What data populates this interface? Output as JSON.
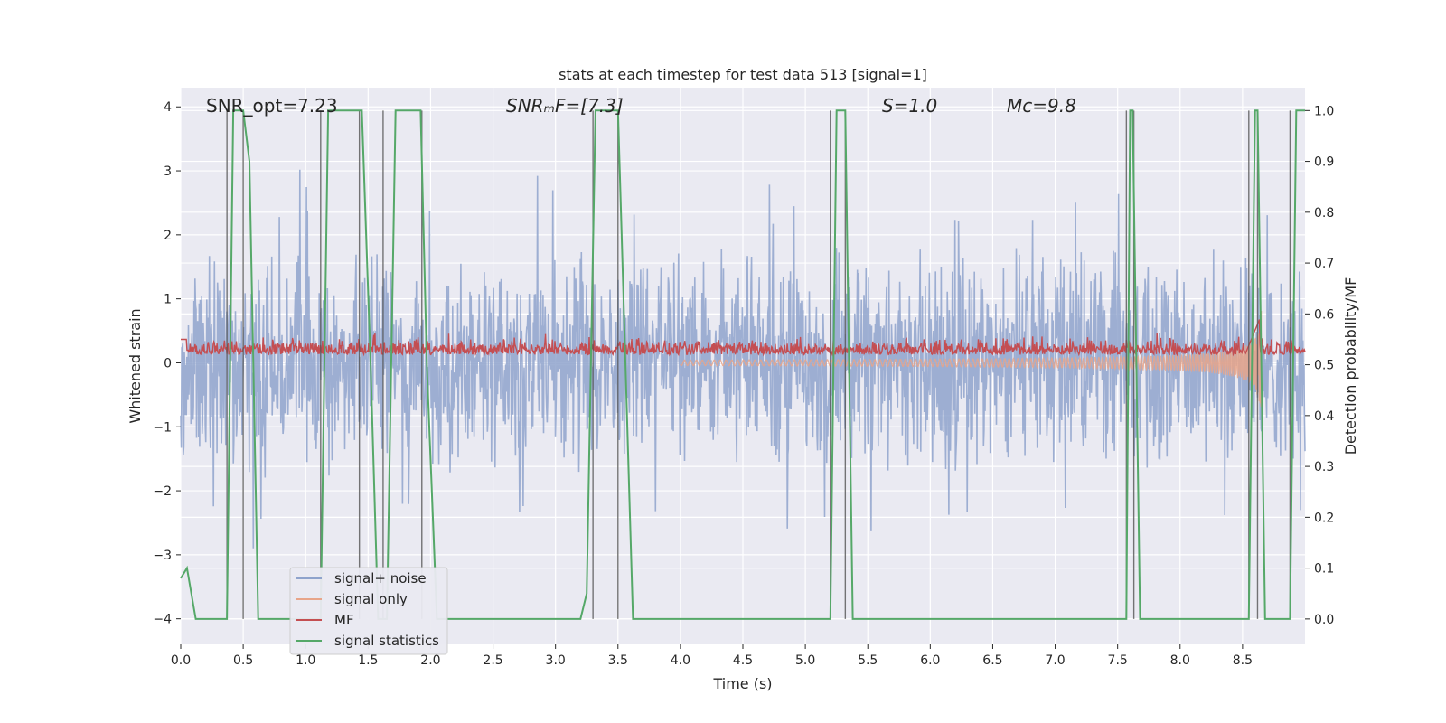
{
  "chart_data": {
    "type": "line",
    "title": "stats at each timestep for test data 513 [signal=1]",
    "xlabel": "Time (s)",
    "ylabel": "Whitened strain",
    "y2label": "Detection probability/MF",
    "xlim": [
      0.0,
      9.0
    ],
    "ylim": [
      -4.4,
      4.3
    ],
    "y2lim": [
      -0.05,
      1.045
    ],
    "grid": true,
    "legend_position": "bottom-left",
    "x_ticks": [
      0.0,
      0.5,
      1.0,
      1.5,
      2.0,
      2.5,
      3.0,
      3.5,
      4.0,
      4.5,
      5.0,
      5.5,
      6.0,
      6.5,
      7.0,
      7.5,
      8.0,
      8.5
    ],
    "x_tick_labels": [
      "0.0",
      "0.5",
      "1.0",
      "1.5",
      "2.0",
      "2.5",
      "3.0",
      "3.5",
      "4.0",
      "4.5",
      "5.0",
      "5.5",
      "6.0",
      "6.5",
      "7.0",
      "7.5",
      "8.0",
      "8.5"
    ],
    "y_ticks": [
      -4,
      -3,
      -2,
      -1,
      0,
      1,
      2,
      3,
      4
    ],
    "y_tick_labels": [
      "−4",
      "−3",
      "−2",
      "−1",
      "0",
      "1",
      "2",
      "3",
      "4"
    ],
    "y2_ticks": [
      0.0,
      0.1,
      0.2,
      0.3,
      0.4,
      0.5,
      0.6,
      0.7,
      0.8,
      0.9,
      1.0
    ],
    "y2_tick_labels": [
      "0.0",
      "0.1",
      "0.2",
      "0.3",
      "0.4",
      "0.5",
      "0.6",
      "0.7",
      "0.8",
      "0.9",
      "1.0"
    ],
    "annotations": [
      {
        "text": "SNR_opt=7.23",
        "x": 0.2,
        "y": 4.0
      },
      {
        "text": "SNRₘF=[7.3]",
        "x": 2.6,
        "y": 4.0
      },
      {
        "text": "S=1.0",
        "x": 5.6,
        "y": 4.0
      },
      {
        "text": "Mᴄ=9.8",
        "x": 6.6,
        "y": 4.0
      }
    ],
    "series": [
      {
        "name": "signal+ noise",
        "color": "#8fa3cc",
        "axis": "left",
        "description_range": [
          -3.6,
          3.5
        ]
      },
      {
        "name": "signal only",
        "color": "#e8a58a",
        "axis": "left",
        "description_range": [
          -0.75,
          1.2
        ]
      },
      {
        "name": "MF",
        "color": "#c44e52",
        "axis": "right",
        "description_range": [
          0.5,
          0.6
        ]
      },
      {
        "name": "signal statistics",
        "color": "#55a868",
        "axis": "right",
        "x": [
          0.0,
          0.05,
          0.12,
          0.37,
          0.42,
          0.5,
          0.55,
          0.62,
          1.12,
          1.18,
          1.45,
          1.52,
          1.58,
          1.65,
          1.72,
          1.92,
          1.97,
          2.05,
          2.15,
          3.2,
          3.25,
          3.32,
          3.38,
          3.5,
          3.62,
          5.2,
          5.25,
          5.32,
          5.38,
          7.57,
          7.6,
          7.62,
          7.68,
          8.55,
          8.6,
          8.62,
          8.68,
          8.88,
          8.93,
          9.0
        ],
        "y": [
          0.08,
          0.1,
          0.0,
          0.0,
          1.0,
          1.0,
          0.9,
          0.0,
          0.0,
          1.0,
          1.0,
          0.5,
          0.0,
          0.0,
          1.0,
          1.0,
          0.5,
          0.0,
          0.0,
          0.0,
          0.05,
          1.0,
          1.0,
          1.0,
          0.0,
          0.0,
          1.0,
          1.0,
          0.0,
          0.0,
          1.0,
          1.0,
          0.0,
          0.0,
          1.0,
          1.0,
          0.0,
          0.0,
          1.0,
          1.0
        ]
      }
    ],
    "vertical_lines_x": [
      0.37,
      0.5,
      1.12,
      1.43,
      1.62,
      1.93,
      3.3,
      3.5,
      5.2,
      5.32,
      7.57,
      7.63,
      8.55,
      8.62,
      8.88
    ],
    "legend_entries": [
      "signal+ noise",
      "signal only",
      "MF",
      "signal statistics"
    ]
  }
}
